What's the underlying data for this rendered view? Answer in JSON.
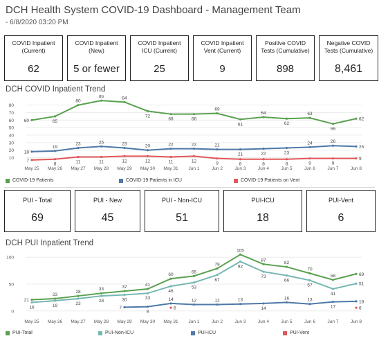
{
  "header": {
    "title": "DCH Health System COVID-19 Dashboard - Management Team",
    "subtitle": "- 6/8/2020 03:20 PM"
  },
  "kpis_top": [
    {
      "label": "COVID Inpatient (Current)",
      "value": "62"
    },
    {
      "label": "COVID Inpatient (New)",
      "value": "5 or fewer"
    },
    {
      "label": "COVID Inpatient ICU (Current)",
      "value": "25"
    },
    {
      "label": "COVID Inpatient Vent (Current)",
      "value": "9"
    },
    {
      "label": "Positive COVID Tests (Cumulative)",
      "value": "898"
    },
    {
      "label": "Negative COVID Tests (Cumulative)",
      "value": "8,461"
    }
  ],
  "section1": {
    "title": "DCH COVID Inpatient Trend"
  },
  "kpis_pui": [
    {
      "label": "PUI - Total",
      "value": "69"
    },
    {
      "label": "PUI - New",
      "value": "45"
    },
    {
      "label": "PUI - Non-ICU",
      "value": "51"
    },
    {
      "label": "PUI-ICU",
      "value": "18"
    },
    {
      "label": "PUI-Vent",
      "value": "6"
    }
  ],
  "section2": {
    "title": "DCH PUI Inpatient Trend"
  },
  "colors": {
    "green": "#59a14f",
    "blue": "#4e79a7",
    "red": "#e15759",
    "teal": "#76b7b2"
  },
  "chart_data": [
    {
      "type": "line",
      "title": "DCH COVID Inpatient Trend",
      "categories": [
        "May 25",
        "May 26",
        "May 27",
        "May 28",
        "May 29",
        "May 30",
        "May 31",
        "Jun 1",
        "Jun 2",
        "Jun 3",
        "Jun 4",
        "Jun 5",
        "Jun 6",
        "Jun 7",
        "Jun 8"
      ],
      "yticks": [
        10,
        20,
        30,
        40,
        50,
        60,
        70,
        80
      ],
      "ylim": [
        5,
        88
      ],
      "grid": true,
      "legend": "bottom",
      "series": [
        {
          "name": "COVID-19 Patients",
          "color": "#59a14f",
          "values": [
            60,
            65,
            80,
            86,
            84,
            72,
            68,
            68,
            69,
            61,
            64,
            62,
            63,
            55,
            62
          ]
        },
        {
          "name": "COVID-19 Patients in ICU",
          "color": "#4e79a7",
          "values": [
            18,
            19,
            23,
            25,
            23,
            20,
            22,
            22,
            21,
            21,
            22,
            23,
            24,
            26,
            25
          ]
        },
        {
          "name": "COVID-19 Patients on Vent",
          "color": "#e15759",
          "values": [
            7,
            8,
            11,
            11,
            12,
            12,
            11,
            12,
            9,
            8,
            8,
            8,
            9,
            9,
            9
          ]
        }
      ],
      "labels": [
        {
          "series": 0,
          "idx": 0,
          "text": "60",
          "pos": "left"
        },
        {
          "series": 0,
          "idx": 1,
          "text": "65",
          "pos": "below"
        },
        {
          "series": 0,
          "idx": 2,
          "text": "80",
          "pos": "above"
        },
        {
          "series": 0,
          "idx": 3,
          "text": "86",
          "pos": "above"
        },
        {
          "series": 0,
          "idx": 4,
          "text": "84",
          "pos": "above"
        },
        {
          "series": 0,
          "idx": 5,
          "text": "72",
          "pos": "below"
        },
        {
          "series": 0,
          "idx": 6,
          "text": "68",
          "pos": "below"
        },
        {
          "series": 0,
          "idx": 7,
          "text": "68",
          "pos": "below"
        },
        {
          "series": 0,
          "idx": 8,
          "text": "69",
          "pos": "above"
        },
        {
          "series": 0,
          "idx": 9,
          "text": "61",
          "pos": "below"
        },
        {
          "series": 0,
          "idx": 10,
          "text": "64",
          "pos": "above"
        },
        {
          "series": 0,
          "idx": 11,
          "text": "62",
          "pos": "below"
        },
        {
          "series": 0,
          "idx": 12,
          "text": "63",
          "pos": "above"
        },
        {
          "series": 0,
          "idx": 13,
          "text": "55",
          "pos": "below"
        },
        {
          "series": 0,
          "idx": 14,
          "text": "62",
          "pos": "right"
        },
        {
          "series": 1,
          "idx": 0,
          "text": "18",
          "pos": "left"
        },
        {
          "series": 1,
          "idx": 1,
          "text": "19",
          "pos": "above"
        },
        {
          "series": 1,
          "idx": 2,
          "text": "23",
          "pos": "above"
        },
        {
          "series": 1,
          "idx": 3,
          "text": "25",
          "pos": "above"
        },
        {
          "series": 1,
          "idx": 4,
          "text": "23",
          "pos": "above"
        },
        {
          "series": 1,
          "idx": 5,
          "text": "20",
          "pos": "above"
        },
        {
          "series": 1,
          "idx": 6,
          "text": "22",
          "pos": "above"
        },
        {
          "series": 1,
          "idx": 7,
          "text": "22",
          "pos": "above"
        },
        {
          "series": 1,
          "idx": 8,
          "text": "21",
          "pos": "above"
        },
        {
          "series": 1,
          "idx": 9,
          "text": "21",
          "pos": "below"
        },
        {
          "series": 1,
          "idx": 10,
          "text": "22",
          "pos": "below"
        },
        {
          "series": 1,
          "idx": 11,
          "text": "23",
          "pos": "below"
        },
        {
          "series": 1,
          "idx": 12,
          "text": "24",
          "pos": "above"
        },
        {
          "series": 1,
          "idx": 13,
          "text": "26",
          "pos": "above"
        },
        {
          "series": 1,
          "idx": 14,
          "text": "25",
          "pos": "right"
        },
        {
          "series": 2,
          "idx": 0,
          "text": "7",
          "pos": "left"
        },
        {
          "series": 2,
          "idx": 1,
          "text": "8",
          "pos": "below"
        },
        {
          "series": 2,
          "idx": 2,
          "text": "11",
          "pos": "below"
        },
        {
          "series": 2,
          "idx": 3,
          "text": "11",
          "pos": "below"
        },
        {
          "series": 2,
          "idx": 4,
          "text": "12",
          "pos": "below"
        },
        {
          "series": 2,
          "idx": 5,
          "text": "12",
          "pos": "below"
        },
        {
          "series": 2,
          "idx": 6,
          "text": "11",
          "pos": "below"
        },
        {
          "series": 2,
          "idx": 7,
          "text": "12",
          "pos": "below"
        },
        {
          "series": 2,
          "idx": 8,
          "text": "9",
          "pos": "below"
        },
        {
          "series": 2,
          "idx": 9,
          "text": "8",
          "pos": "below"
        },
        {
          "series": 2,
          "idx": 10,
          "text": "8",
          "pos": "below"
        },
        {
          "series": 2,
          "idx": 11,
          "text": "8",
          "pos": "below"
        },
        {
          "series": 2,
          "idx": 12,
          "text": "9",
          "pos": "below"
        },
        {
          "series": 2,
          "idx": 13,
          "text": "9",
          "pos": "below"
        },
        {
          "series": 2,
          "idx": 14,
          "text": "9",
          "pos": "right"
        }
      ]
    },
    {
      "type": "line",
      "title": "DCH PUI Inpatient Trend",
      "categories": [
        "May 25",
        "May 26",
        "May 27",
        "May 28",
        "May 29",
        "May 30",
        "May 31",
        "Jun 1",
        "Jun 2",
        "Jun 3",
        "Jun 4",
        "Jun 5",
        "Jun 6",
        "Jun 7",
        "Jun 8"
      ],
      "yticks": [
        0,
        50,
        100
      ],
      "ylim": [
        -8,
        108
      ],
      "grid": true,
      "legend": "bottom",
      "series": [
        {
          "name": "PUI-Total",
          "color": "#59a14f",
          "values": [
            21,
            23,
            28,
            33,
            37,
            41,
            60,
            65,
            79,
            105,
            87,
            82,
            70,
            58,
            69
          ]
        },
        {
          "name": "PUI-Non-ICU",
          "color": "#76b7b2",
          "values": [
            16,
            19,
            23,
            28,
            30,
            33,
            46,
            53,
            67,
            92,
            73,
            66,
            57,
            41,
            51
          ]
        },
        {
          "name": "PUI-ICU",
          "color": "#4e79a7",
          "values": [
            null,
            null,
            null,
            null,
            7,
            8,
            14,
            12,
            12,
            13,
            14,
            16,
            13,
            17,
            18
          ]
        },
        {
          "name": "PUI-Vent",
          "color": "#e15759",
          "values": [
            null,
            null,
            null,
            null,
            null,
            null,
            6,
            null,
            null,
            null,
            null,
            null,
            null,
            null,
            6
          ]
        }
      ],
      "labels": [
        {
          "series": 0,
          "idx": 0,
          "text": "21",
          "pos": "left"
        },
        {
          "series": 0,
          "idx": 1,
          "text": "23",
          "pos": "above"
        },
        {
          "series": 0,
          "idx": 2,
          "text": "28",
          "pos": "above"
        },
        {
          "series": 0,
          "idx": 3,
          "text": "33",
          "pos": "above"
        },
        {
          "series": 0,
          "idx": 4,
          "text": "37",
          "pos": "above"
        },
        {
          "series": 0,
          "idx": 5,
          "text": "41",
          "pos": "above"
        },
        {
          "series": 0,
          "idx": 6,
          "text": "60",
          "pos": "above"
        },
        {
          "series": 0,
          "idx": 7,
          "text": "65",
          "pos": "above"
        },
        {
          "series": 0,
          "idx": 8,
          "text": "79",
          "pos": "above"
        },
        {
          "series": 0,
          "idx": 9,
          "text": "105",
          "pos": "above"
        },
        {
          "series": 0,
          "idx": 10,
          "text": "87",
          "pos": "above"
        },
        {
          "series": 0,
          "idx": 11,
          "text": "82",
          "pos": "above"
        },
        {
          "series": 0,
          "idx": 12,
          "text": "70",
          "pos": "above"
        },
        {
          "series": 0,
          "idx": 13,
          "text": "58",
          "pos": "above"
        },
        {
          "series": 0,
          "idx": 14,
          "text": "69",
          "pos": "right"
        },
        {
          "series": 1,
          "idx": 0,
          "text": "16",
          "pos": "below"
        },
        {
          "series": 1,
          "idx": 1,
          "text": "19",
          "pos": "below"
        },
        {
          "series": 1,
          "idx": 2,
          "text": "23",
          "pos": "below"
        },
        {
          "series": 1,
          "idx": 3,
          "text": "28",
          "pos": "below"
        },
        {
          "series": 1,
          "idx": 4,
          "text": "30",
          "pos": "below"
        },
        {
          "series": 1,
          "idx": 5,
          "text": "33",
          "pos": "below"
        },
        {
          "series": 1,
          "idx": 6,
          "text": "46",
          "pos": "below"
        },
        {
          "series": 1,
          "idx": 7,
          "text": "53",
          "pos": "below"
        },
        {
          "series": 1,
          "idx": 8,
          "text": "67",
          "pos": "below"
        },
        {
          "series": 1,
          "idx": 9,
          "text": "92",
          "pos": "below"
        },
        {
          "series": 1,
          "idx": 10,
          "text": "73",
          "pos": "below"
        },
        {
          "series": 1,
          "idx": 11,
          "text": "66",
          "pos": "below"
        },
        {
          "series": 1,
          "idx": 12,
          "text": "57",
          "pos": "below"
        },
        {
          "series": 1,
          "idx": 13,
          "text": "41",
          "pos": "below"
        },
        {
          "series": 1,
          "idx": 14,
          "text": "51",
          "pos": "right"
        },
        {
          "series": 2,
          "idx": 4,
          "text": "7",
          "pos": "left"
        },
        {
          "series": 2,
          "idx": 5,
          "text": "8",
          "pos": "below"
        },
        {
          "series": 2,
          "idx": 6,
          "text": "14",
          "pos": "above"
        },
        {
          "series": 2,
          "idx": 7,
          "text": "12",
          "pos": "above"
        },
        {
          "series": 2,
          "idx": 8,
          "text": "12",
          "pos": "above"
        },
        {
          "series": 2,
          "idx": 9,
          "text": "13",
          "pos": "above"
        },
        {
          "series": 2,
          "idx": 10,
          "text": "14",
          "pos": "below"
        },
        {
          "series": 2,
          "idx": 11,
          "text": "16",
          "pos": "above"
        },
        {
          "series": 2,
          "idx": 12,
          "text": "13",
          "pos": "above"
        },
        {
          "series": 2,
          "idx": 13,
          "text": "17",
          "pos": "below"
        },
        {
          "series": 2,
          "idx": 14,
          "text": "18",
          "pos": "right"
        },
        {
          "series": 3,
          "idx": 6,
          "text": "6",
          "pos": "right"
        },
        {
          "series": 3,
          "idx": 14,
          "text": "6",
          "pos": "right"
        }
      ]
    }
  ]
}
